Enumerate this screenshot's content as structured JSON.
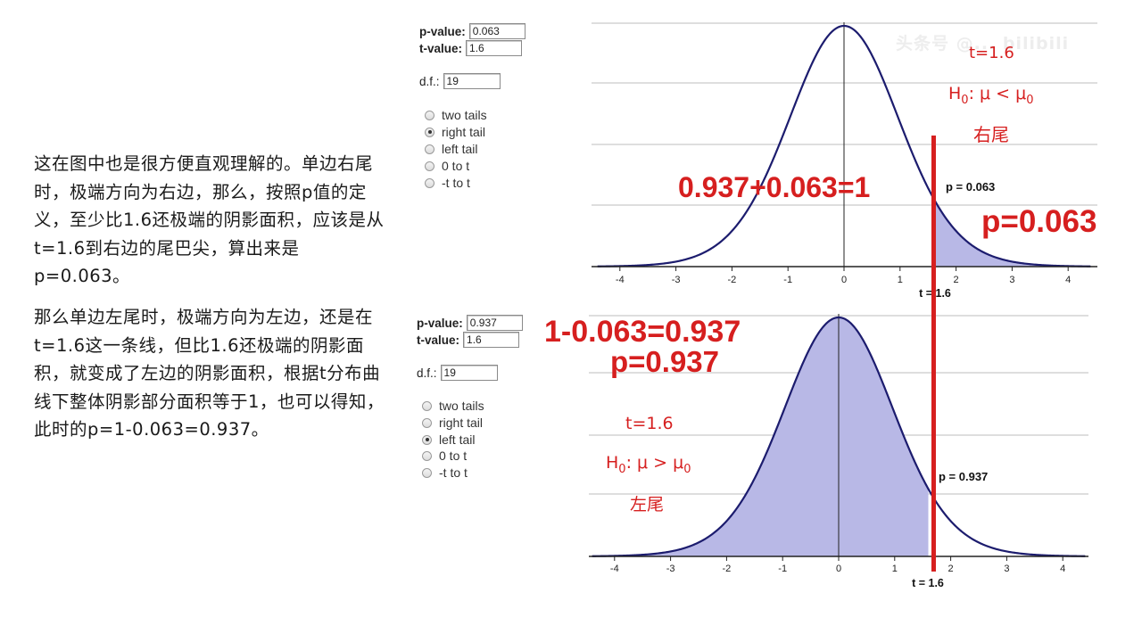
{
  "explanation": {
    "paragraph1": "这在图中也是很方便直观理解的。单边右尾时，极端方向为右边，那么，按照p值的定义，至少比1.6还极端的阴影面积，应该是从t=1.6到右边的尾巴尖，算出来是p=0.063。",
    "paragraph2": "那么单边左尾时，极端方向为左边，还是在t=1.6这一条线，但比1.6还极端的阴影面积，就变成了左边的阴影面积，根据t分布曲线下整体阴影部分面积等于1，也可以得知，此时的p=1-0.063=0.937。"
  },
  "calc_top": {
    "pvalue_label": "p-value:",
    "pvalue": "0.063",
    "tvalue_label": "t-value:",
    "tvalue": "1.6",
    "df_label": "d.f.:",
    "df": "19",
    "options": [
      "two tails",
      "right tail",
      "left tail",
      "0 to t",
      "-t to t"
    ],
    "selected": "right tail"
  },
  "calc_bottom": {
    "pvalue_label": "p-value:",
    "pvalue": "0.937",
    "tvalue_label": "t-value:",
    "tvalue": "1.6",
    "df_label": "d.f.:",
    "df": "19",
    "options": [
      "two tails",
      "right tail",
      "left tail",
      "0 to t",
      "-t to t"
    ],
    "selected": "left tail"
  },
  "chart_data": [
    {
      "type": "area",
      "x_ticks": [
        -4,
        -3,
        -2,
        -1,
        0,
        1,
        2,
        3,
        4
      ],
      "xlim": [
        -4.4,
        4.4
      ],
      "df": 19,
      "t": 1.6,
      "shaded_region": "right",
      "x_marker_label": "t = 1.6",
      "p_label": "p = 0.063"
    },
    {
      "type": "area",
      "x_ticks": [
        -4,
        -3,
        -2,
        -1,
        0,
        1,
        2,
        3,
        4
      ],
      "xlim": [
        -4.4,
        4.4
      ],
      "df": 19,
      "t": 1.6,
      "shaded_region": "left",
      "x_marker_label": "t = 1.6",
      "p_label": "p = 0.937"
    }
  ],
  "annotations": {
    "top_t": "t=1.6",
    "top_hyp_main": "H",
    "top_hyp_sub0": "0",
    "top_hyp_rest": ": μ < μ",
    "top_hyp_sub1": "0",
    "top_tail": "右尾",
    "top_sum": "0.937+0.063=1",
    "top_p": "p=0.063",
    "bottom_calc": "1-0.063=0.937",
    "bottom_p": "p=0.937",
    "bottom_t": "t=1.6",
    "bottom_hyp_main": "H",
    "bottom_hyp_sub0": "0",
    "bottom_hyp_rest": ": μ > μ",
    "bottom_hyp_sub1": "0",
    "bottom_tail": "左尾"
  },
  "watermark": "头条号 @...  bilibili",
  "colors": {
    "curve": "#1c1c6e",
    "fill": "#b8b8e6",
    "red": "#d61f1f",
    "grid": "#bdbdbd"
  }
}
